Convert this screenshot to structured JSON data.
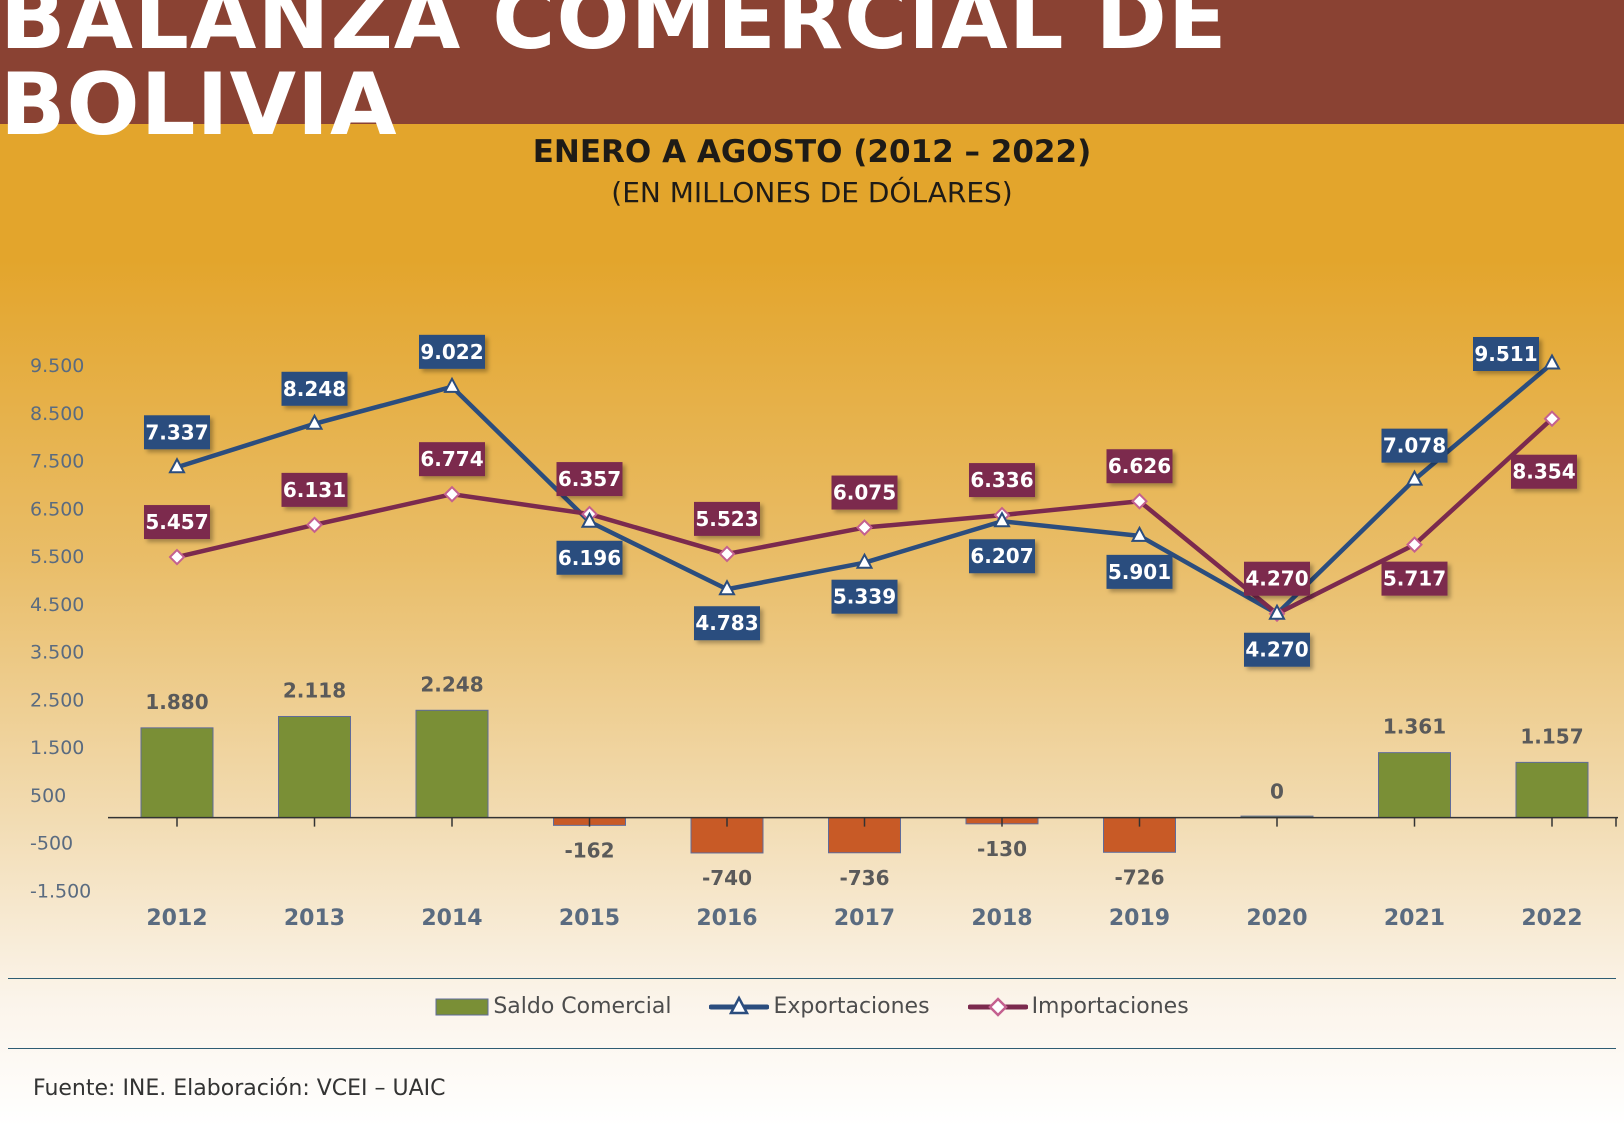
{
  "header": {
    "title": "BALANZA COMERCIAL DE BOLIVIA",
    "subtitle": "ENERO A AGOSTO (2012 – 2022)",
    "units": "(EN MILLONES DE DÓLARES)"
  },
  "chart_data": {
    "type": "bar+line",
    "title": "BALANZA COMERCIAL DE BOLIVIA",
    "subtitle": "ENERO A AGOSTO (2012 – 2022)",
    "units": "(EN MILLONES DE DÓLARES)",
    "categories": [
      "2012",
      "2013",
      "2014",
      "2015",
      "2016",
      "2017",
      "2018",
      "2019",
      "2020",
      "2021",
      "2022"
    ],
    "y_ticks": [
      {
        "value": 9500,
        "label": "9.500"
      },
      {
        "value": 8500,
        "label": "8.500"
      },
      {
        "value": 7500,
        "label": "7.500"
      },
      {
        "value": 6500,
        "label": "6.500"
      },
      {
        "value": 5500,
        "label": "5.500"
      },
      {
        "value": 4500,
        "label": "4.500"
      },
      {
        "value": 3500,
        "label": "3.500"
      },
      {
        "value": 2500,
        "label": "2.500"
      },
      {
        "value": 1500,
        "label": "1.500"
      },
      {
        "value": 500,
        "label": "500"
      },
      {
        "value": -500,
        "label": "-500"
      },
      {
        "value": -1500,
        "label": "-1.500"
      }
    ],
    "ylim": [
      -1500,
      9500
    ],
    "series": [
      {
        "name": "Saldo Comercial",
        "kind": "bar",
        "color_positive": "#7a8f36",
        "color_negative": "#c85a26",
        "values": [
          1880,
          2118,
          2248,
          -162,
          -740,
          -736,
          -130,
          -726,
          0,
          1361,
          1157
        ],
        "labels": [
          "1.880",
          "2.118",
          "2.248",
          "-162",
          "-740",
          "-736",
          "-130",
          "-726",
          "0",
          "1.361",
          "1.157"
        ]
      },
      {
        "name": "Exportaciones",
        "kind": "line",
        "marker": "triangle",
        "color": "#2b4d7e",
        "values": [
          7337,
          8248,
          9022,
          6196,
          4783,
          5339,
          6207,
          5901,
          4270,
          7078,
          9511
        ],
        "labels": [
          "7.337",
          "8.248",
          "9.022",
          "6.196",
          "4.783",
          "5.339",
          "6.207",
          "5.901",
          "4.270",
          "7.078",
          "9.511"
        ]
      },
      {
        "name": "Importaciones",
        "kind": "line",
        "marker": "diamond",
        "color": "#7b2a4e",
        "values": [
          5457,
          6131,
          6774,
          6357,
          5523,
          6075,
          6336,
          6626,
          4270,
          5717,
          8354
        ],
        "labels": [
          "5.457",
          "6.131",
          "6.774",
          "6.357",
          "5.523",
          "6.075",
          "6.336",
          "6.626",
          "4.270",
          "5.717",
          "8.354"
        ]
      }
    ],
    "legend_position": "bottom"
  },
  "legend": {
    "saldo": "Saldo Comercial",
    "exportaciones": "Exportaciones",
    "importaciones": "Importaciones"
  },
  "footer": {
    "source": "Fuente: INE. Elaboración: VCEI – UAIC"
  },
  "colors": {
    "banner": "#8a4233",
    "exports": "#2b4d7e",
    "imports": "#7b2a4e",
    "positive_bar": "#7a8f36",
    "negative_bar": "#c85a26",
    "axis_text": "#5a6b80"
  }
}
